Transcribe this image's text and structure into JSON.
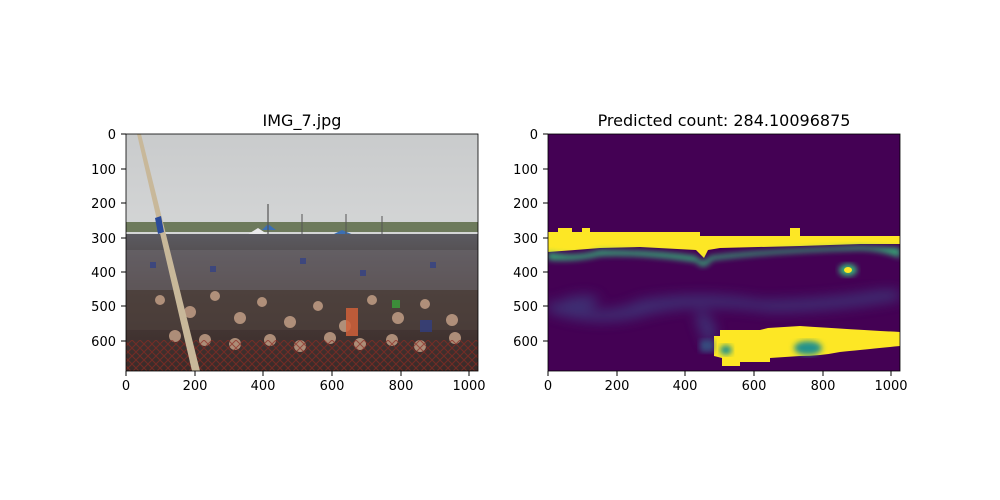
{
  "left_panel": {
    "title": "IMG_7.jpg",
    "image_description_icon": "crowd-photo",
    "x_ticks": [
      "0",
      "200",
      "400",
      "600",
      "800",
      "1000"
    ],
    "y_ticks": [
      "0",
      "100",
      "200",
      "300",
      "400",
      "500",
      "600"
    ]
  },
  "right_panel": {
    "title": "Predicted count: 284.10096875",
    "colormap": "viridis",
    "colors": {
      "background": "#440154",
      "high": "#fde725",
      "mid_green": "#35b779",
      "mid_blue": "#31688e"
    },
    "x_ticks": [
      "0",
      "200",
      "400",
      "600",
      "800",
      "1000"
    ],
    "y_ticks": [
      "0",
      "100",
      "200",
      "300",
      "400",
      "500",
      "600"
    ]
  }
}
